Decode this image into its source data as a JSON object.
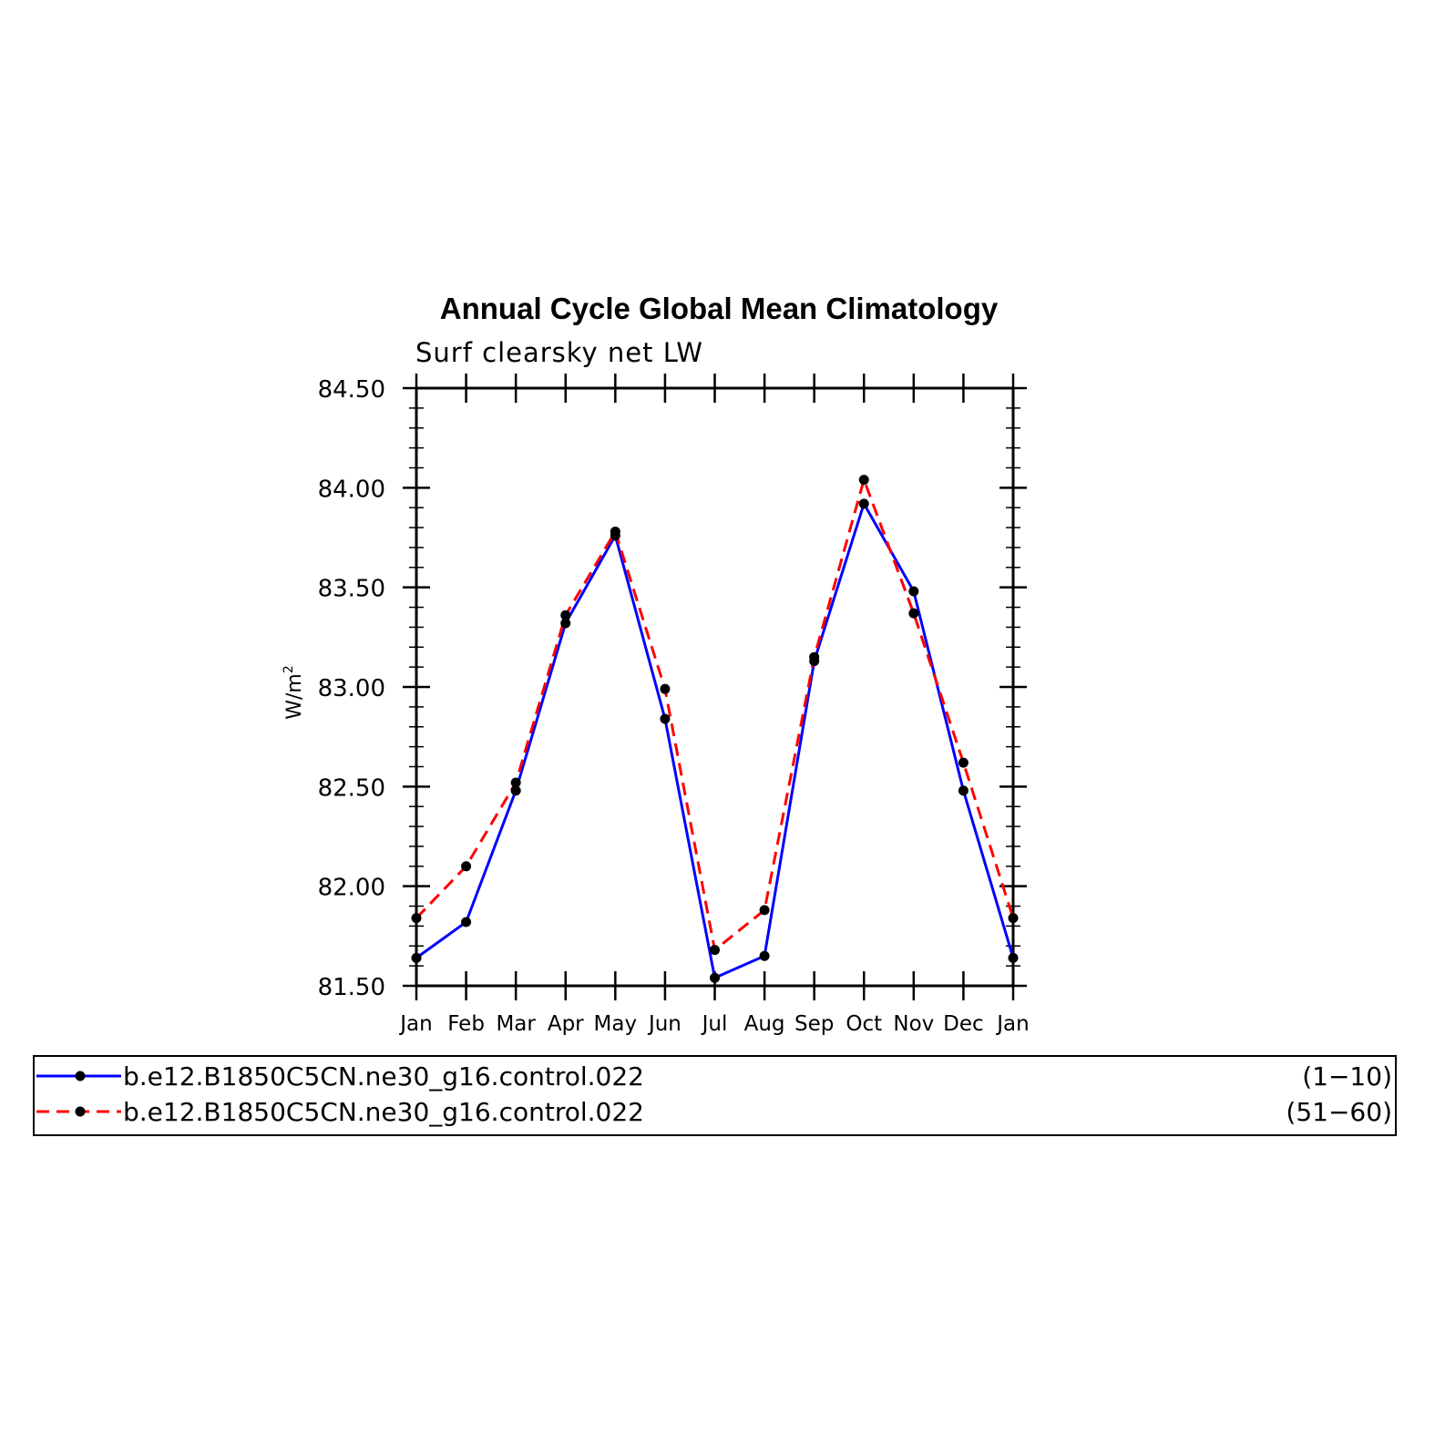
{
  "chart_data": {
    "type": "line",
    "title": "Annual Cycle Global Mean Climatology",
    "subtitle": "Surf clearsky net LW",
    "ylabel": "W/m",
    "ylabel_superscript": "2",
    "xlabel": "",
    "categories": [
      "Jan",
      "Feb",
      "Mar",
      "Apr",
      "May",
      "Jun",
      "Jul",
      "Aug",
      "Sep",
      "Oct",
      "Nov",
      "Dec",
      "Jan"
    ],
    "ylim": [
      81.5,
      84.5
    ],
    "yticks": [
      "81.50",
      "82.00",
      "82.50",
      "83.00",
      "83.50",
      "84.00",
      "84.50"
    ],
    "grid": false,
    "legend_position": "bottom",
    "series": [
      {
        "name": "b.e12.B1850C5CN.ne30_g16.control.022",
        "years": "(1−10)",
        "color": "#0000ff",
        "dash": "solid",
        "values": [
          81.64,
          81.82,
          82.48,
          83.32,
          83.76,
          82.84,
          81.54,
          81.65,
          83.13,
          83.92,
          83.48,
          82.48,
          81.64
        ]
      },
      {
        "name": "b.e12.B1850C5CN.ne30_g16.control.022",
        "years": "(51−60)",
        "color": "#ff0000",
        "dash": "dashed",
        "values": [
          81.84,
          82.1,
          82.52,
          83.36,
          83.78,
          82.99,
          81.68,
          81.88,
          83.15,
          84.04,
          83.37,
          82.62,
          81.84
        ]
      }
    ]
  }
}
